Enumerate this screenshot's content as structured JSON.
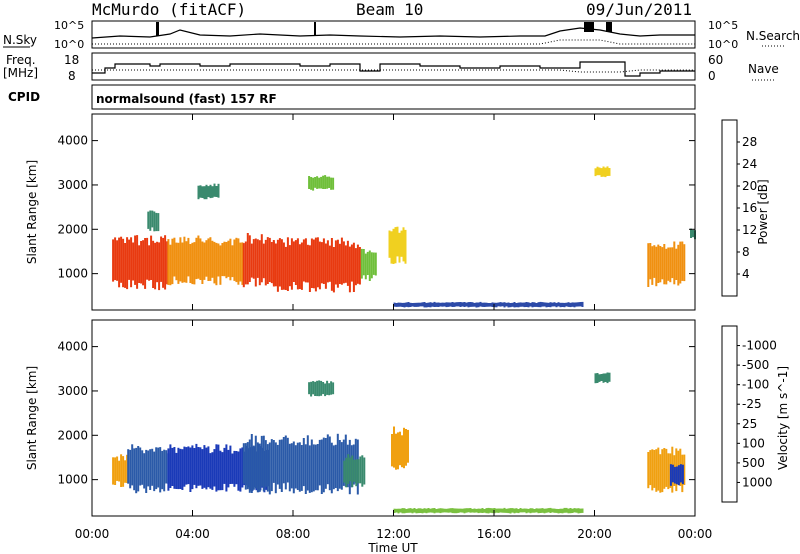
{
  "header": {
    "station": "McMurdo (fitACF)",
    "beam": "Beam 10",
    "date": "09/Jun/2011"
  },
  "panel_labels": {
    "nsky": "N.Sky",
    "nsearch": "N.Search",
    "freq_line1": "Freq.",
    "freq_line2": "[MHz]",
    "nave": "Nave",
    "cpid_label": "CPID",
    "cpid_value": "normalsound (fast) 157 RF",
    "nsky_ticks": [
      "10^5",
      "10^0"
    ],
    "nsearch_ticks": [
      "10^5",
      "10^0"
    ],
    "freq_ticks": [
      "18",
      "8"
    ],
    "nave_ticks": [
      "60",
      "0"
    ]
  },
  "chart_data": [
    {
      "type": "heatmap",
      "id": "power",
      "xlabel": "",
      "ylabel": "Slant Range [km]",
      "x_ticks": [
        "00:00",
        "04:00",
        "08:00",
        "12:00",
        "16:00",
        "20:00",
        "00:00"
      ],
      "x_tick_hours": [
        0,
        4,
        8,
        12,
        16,
        20,
        24
      ],
      "xlim_hours": [
        0,
        24
      ],
      "ylim_km": [
        180,
        4600
      ],
      "y_ticks": [
        1000,
        2000,
        3000,
        4000
      ],
      "colorbar": {
        "label": "Power [dB]",
        "levels": [
          4,
          8,
          12,
          16,
          20,
          24,
          28
        ],
        "colors": [
          "#1a1aff",
          "#2c4aa8",
          "#3a8a6e",
          "#6fbf3a",
          "#f0d020",
          "#f09010",
          "#e83a10",
          "#ff0000"
        ]
      },
      "regions": [
        {
          "t": [
            0.8,
            3.0
          ],
          "r": [
            750,
            1750
          ],
          "level": 24
        },
        {
          "t": [
            3.0,
            6.0
          ],
          "r": [
            850,
            1750
          ],
          "level": 20
        },
        {
          "t": [
            6.0,
            7.2
          ],
          "r": [
            800,
            1800
          ],
          "level": 24
        },
        {
          "t": [
            7.2,
            10.7
          ],
          "r": [
            700,
            1700
          ],
          "level": 26
        },
        {
          "t": [
            10.7,
            11.3
          ],
          "r": [
            900,
            1500
          ],
          "level": 12
        },
        {
          "t": [
            11.8,
            12.5
          ],
          "r": [
            1300,
            2000
          ],
          "level": 18
        },
        {
          "t": [
            22.1,
            23.6
          ],
          "r": [
            800,
            1650
          ],
          "level": 22
        },
        {
          "t": [
            23.8,
            24.0
          ],
          "r": [
            1800,
            2000
          ],
          "level": 8
        },
        {
          "t": [
            2.2,
            2.6
          ],
          "r": [
            2000,
            2400
          ],
          "level": 8
        },
        {
          "t": [
            8.6,
            9.6
          ],
          "r": [
            2900,
            3200
          ],
          "level": 12
        },
        {
          "t": [
            4.2,
            5.0
          ],
          "r": [
            2700,
            3000
          ],
          "level": 8
        },
        {
          "t": [
            20.0,
            20.6
          ],
          "r": [
            3200,
            3400
          ],
          "level": 16
        },
        {
          "t": [
            12.0,
            19.5
          ],
          "r": [
            250,
            350
          ],
          "level": 6
        }
      ]
    },
    {
      "type": "heatmap",
      "id": "velocity",
      "xlabel": "Time UT",
      "ylabel": "Slant Range [km]",
      "x_ticks": [
        "00:00",
        "04:00",
        "08:00",
        "12:00",
        "16:00",
        "20:00",
        "00:00"
      ],
      "x_tick_hours": [
        0,
        4,
        8,
        12,
        16,
        20,
        24
      ],
      "xlim_hours": [
        0,
        24
      ],
      "ylim_km": [
        180,
        4600
      ],
      "y_ticks": [
        1000,
        2000,
        3000,
        4000
      ],
      "colorbar": {
        "label": "Velocity [m s^-1]",
        "levels": [
          1000,
          500,
          100,
          25,
          -25,
          -100,
          -500,
          -1000
        ],
        "colors": [
          "#1a3ab8",
          "#2b5aa8",
          "#3a8a6e",
          "#7ac040",
          "#c0c0c0",
          "#f0a010",
          "#f07010",
          "#f04010",
          "#ff0000"
        ]
      },
      "regions": [
        {
          "t": [
            0.8,
            1.4
          ],
          "r": [
            900,
            1500
          ],
          "level": -100
        },
        {
          "t": [
            1.4,
            3.0
          ],
          "r": [
            800,
            1700
          ],
          "level": 500
        },
        {
          "t": [
            3.0,
            7.0
          ],
          "r": [
            800,
            1700
          ],
          "level": 1000
        },
        {
          "t": [
            6.0,
            10.6
          ],
          "r": [
            800,
            1900
          ],
          "level": 500
        },
        {
          "t": [
            10.0,
            10.8
          ],
          "r": [
            900,
            1500
          ],
          "level": 100
        },
        {
          "t": [
            11.9,
            12.6
          ],
          "r": [
            1300,
            2100
          ],
          "level": -100
        },
        {
          "t": [
            22.1,
            23.6
          ],
          "r": [
            800,
            1650
          ],
          "level": -100
        },
        {
          "t": [
            23.0,
            23.5
          ],
          "r": [
            900,
            1300
          ],
          "level": 1000
        },
        {
          "t": [
            8.6,
            9.6
          ],
          "r": [
            2900,
            3200
          ],
          "level": 100
        },
        {
          "t": [
            20.0,
            20.6
          ],
          "r": [
            3200,
            3400
          ],
          "level": 100
        },
        {
          "t": [
            12.0,
            19.5
          ],
          "r": [
            250,
            350
          ],
          "level": 25
        }
      ]
    }
  ]
}
